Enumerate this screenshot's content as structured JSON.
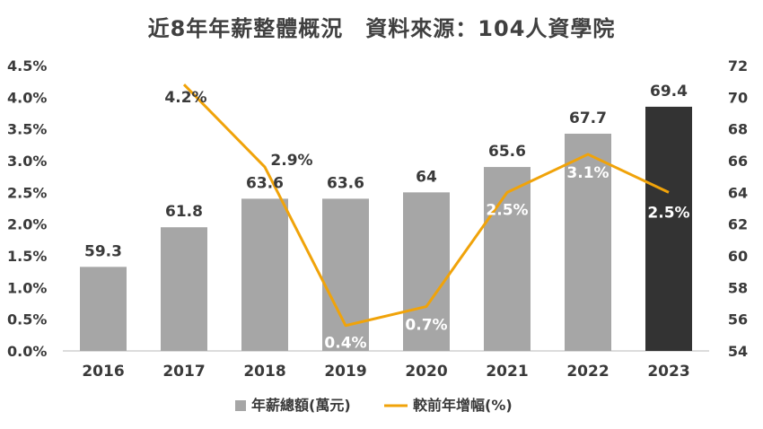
{
  "title": "近8年年薪整體概況　資料來源：104人資學院",
  "chart_data": {
    "type": "bar",
    "title": "近8年年薪整體概況　資料來源：104人資學院",
    "categories": [
      "2016",
      "2017",
      "2018",
      "2019",
      "2020",
      "2021",
      "2022",
      "2023"
    ],
    "series": [
      {
        "name": "年薪總額(萬元)",
        "type": "bar",
        "axis": "right",
        "values": [
          59.3,
          61.8,
          63.6,
          63.6,
          64,
          65.6,
          67.7,
          69.4
        ],
        "labels": [
          "59.3",
          "61.8",
          "63.6",
          "63.6",
          "64",
          "65.6",
          "67.7",
          "69.4"
        ],
        "colors": [
          "#a6a6a6",
          "#a6a6a6",
          "#a6a6a6",
          "#a6a6a6",
          "#a6a6a6",
          "#a6a6a6",
          "#a6a6a6",
          "#333333"
        ]
      },
      {
        "name": "較前年增幅(%)",
        "type": "line",
        "axis": "left",
        "values": [
          null,
          4.2,
          2.9,
          0.4,
          0.7,
          2.5,
          3.1,
          2.5
        ],
        "labels": [
          "",
          "4.2%",
          "2.9%",
          "0.4%",
          "0.7%",
          "2.5%",
          "3.1%",
          "2.5%"
        ],
        "color": "#f0a30a"
      }
    ],
    "y_left": {
      "ylim": [
        0,
        4.5
      ],
      "ticks": [
        "0.0%",
        "0.5%",
        "1.0%",
        "1.5%",
        "2.0%",
        "2.5%",
        "3.0%",
        "3.5%",
        "4.0%",
        "4.5%"
      ]
    },
    "y_right": {
      "ylim": [
        54,
        72
      ],
      "ticks": [
        "54",
        "56",
        "58",
        "60",
        "62",
        "64",
        "66",
        "68",
        "70",
        "72"
      ]
    },
    "grid": false,
    "legend_position": "bottom"
  }
}
